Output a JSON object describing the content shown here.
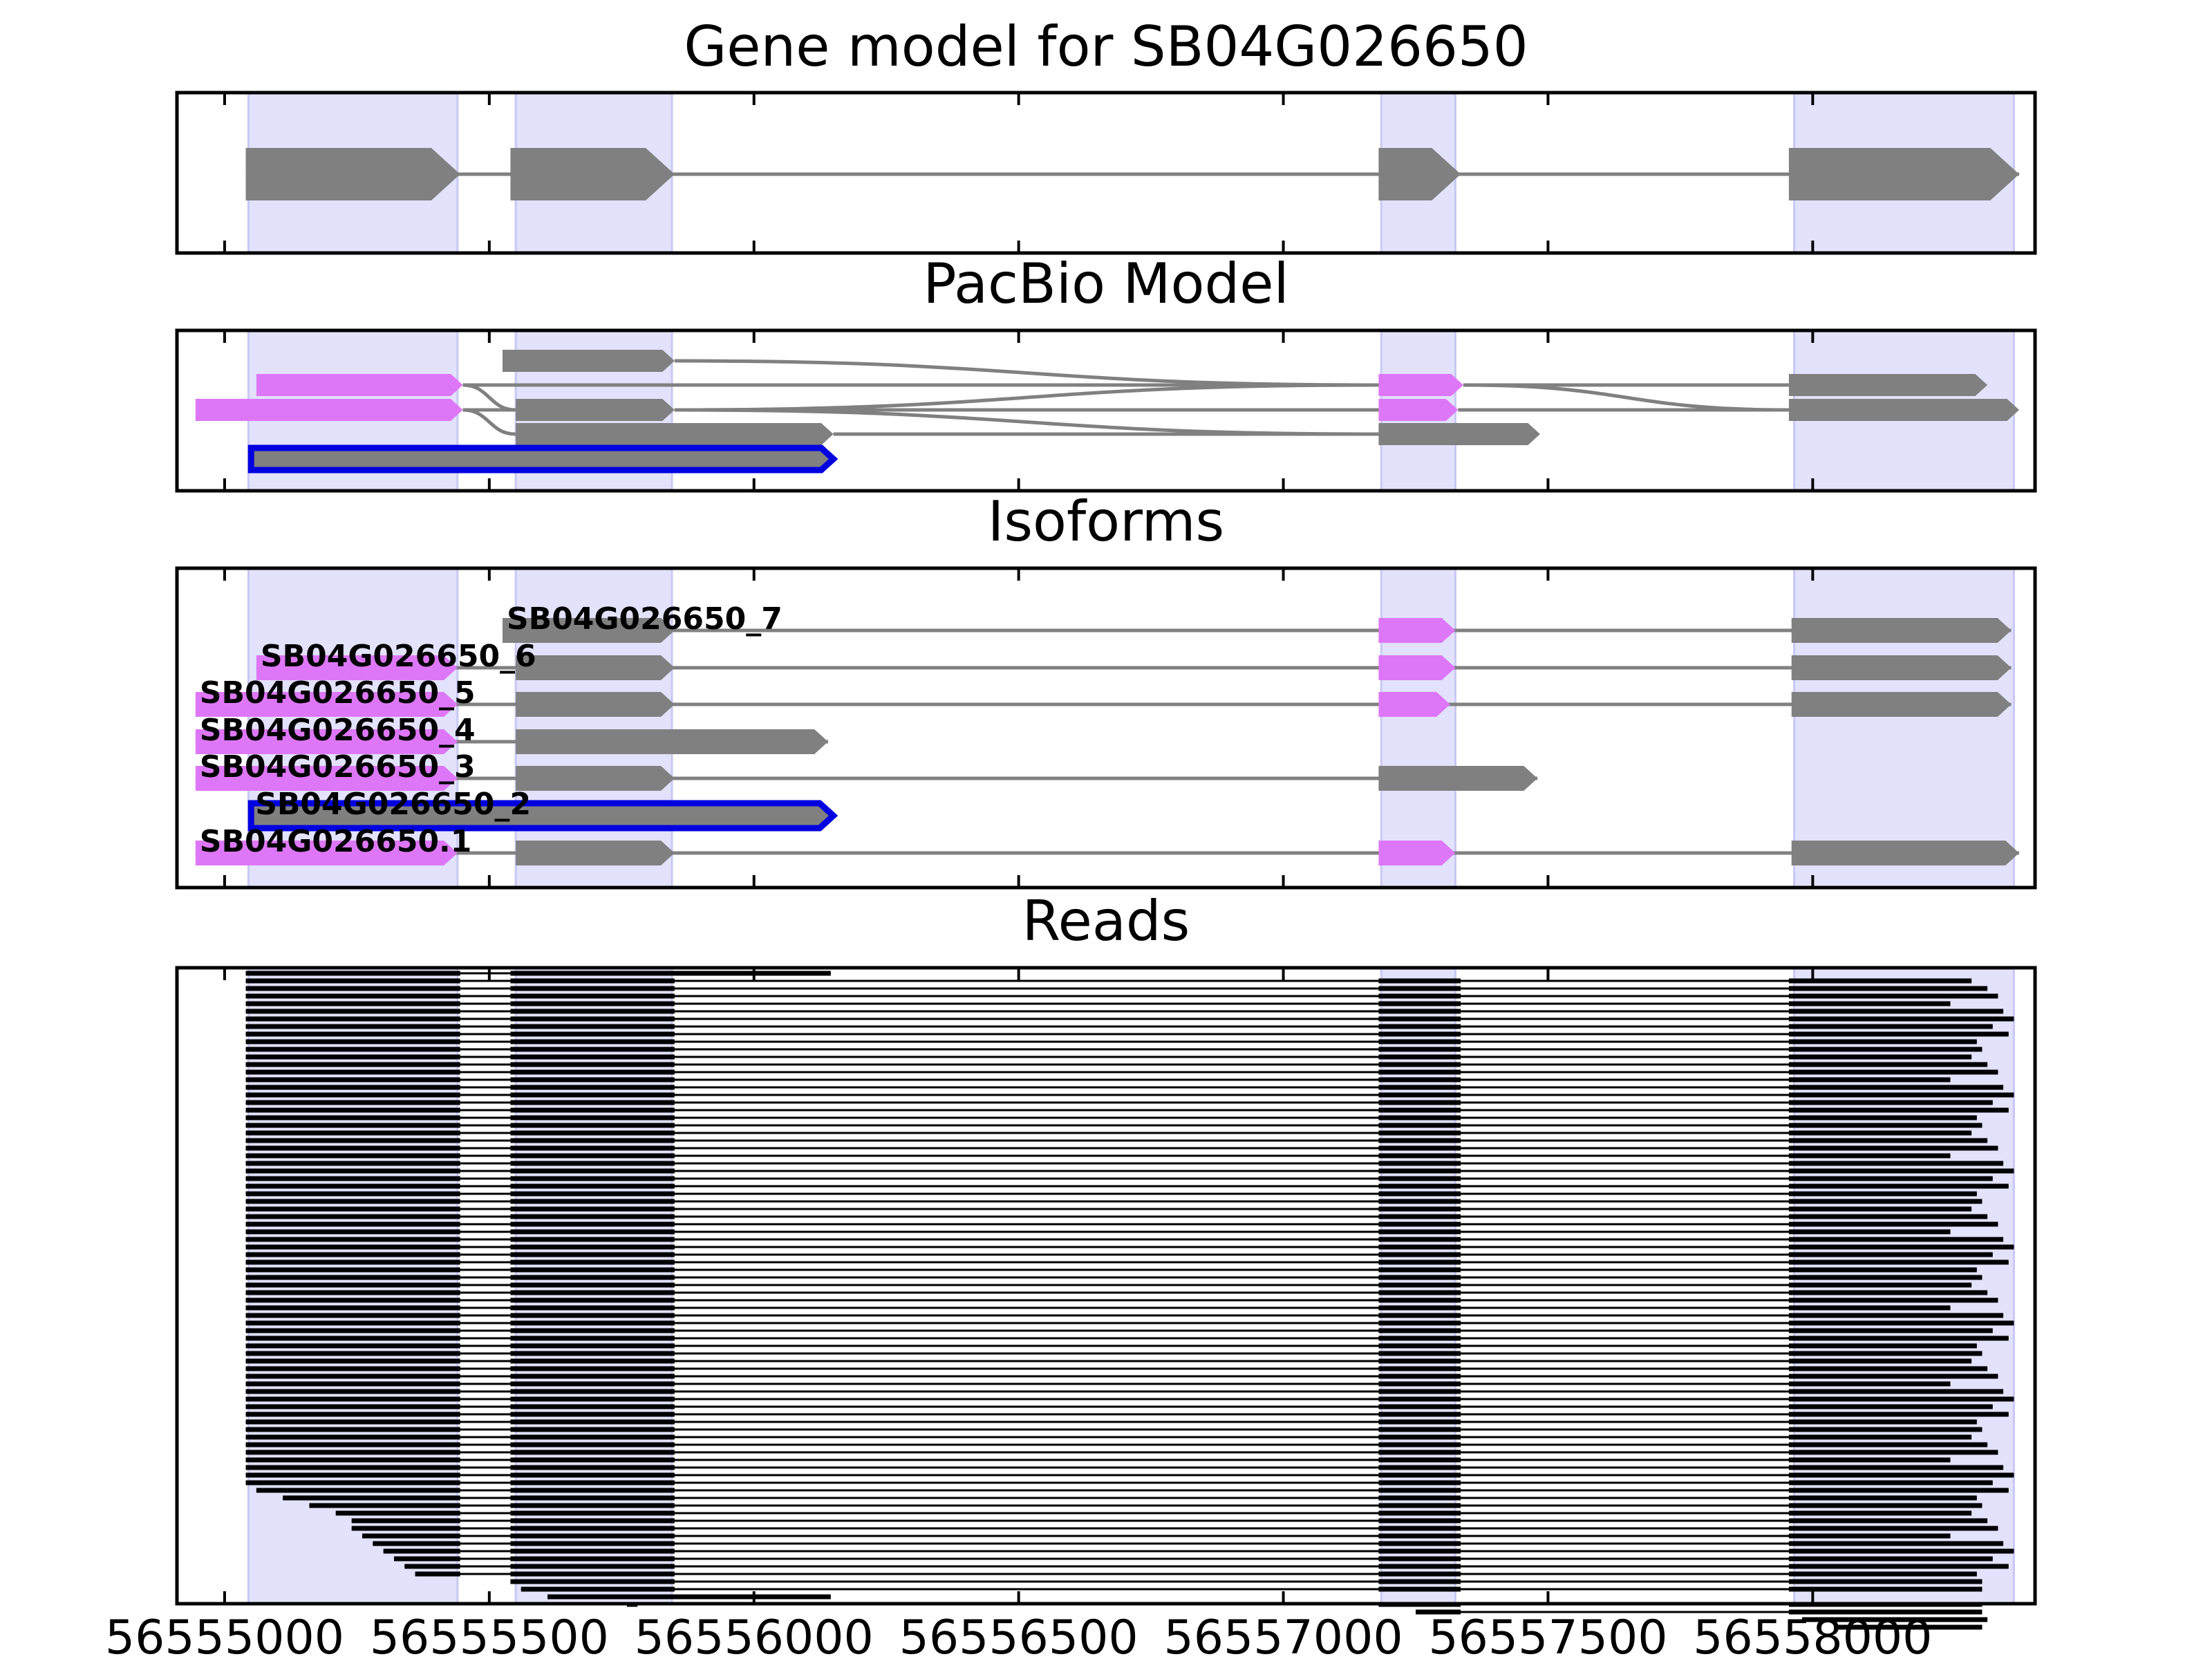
{
  "chart_data": {
    "type": "gene-structure",
    "x_range": [
      56554910,
      56558420
    ],
    "x_ticks": [
      "56555000",
      "56555500",
      "56556000",
      "56556500",
      "56557000",
      "56557500",
      "56558000"
    ],
    "x_tick_values": [
      56555000,
      56555500,
      56556000,
      56556500,
      56557000,
      56557500,
      56558000
    ],
    "exon_shading": [
      [
        56555045,
        56555440
      ],
      [
        56555550,
        56555845
      ],
      [
        56557185,
        56557325
      ],
      [
        56557965,
        56558380
      ]
    ],
    "colors": {
      "shade": "#e2e2fc",
      "exon": "#808080",
      "pacbio_highlight": "#dd77f7",
      "selected": "#0000e0",
      "read": "#000000",
      "intron": "#808080"
    },
    "panels": [
      {
        "title": "Gene model for SB04G026650",
        "transcripts": [
          {
            "exons": [
              [
                56555040,
                56555445
              ],
              [
                56555540,
                56555850
              ],
              [
                56557180,
                56557335
              ],
              [
                56557955,
                56558390
              ]
            ],
            "colors": [
              "#808080",
              "#808080",
              "#808080",
              "#808080"
            ]
          }
        ]
      },
      {
        "title": "PacBio Model",
        "transcripts": [
          {
            "lane": 0,
            "exons": [
              [
                56555525,
                56555850
              ]
            ],
            "colors": [
              "#808080"
            ],
            "link_to": [
              56557180,
              1
            ],
            "selected": false
          },
          {
            "lane": 1,
            "exons": [
              [
                56555060,
                56555450
              ],
              [
                56557180,
                56557340
              ],
              [
                56557955,
                56558330
              ]
            ],
            "colors": [
              "#dd77f7",
              "#dd77f7",
              "#808080"
            ],
            "selected": false
          },
          {
            "lane": 2,
            "exons": [
              [
                56554945,
                56555450
              ],
              [
                56555550,
                56555850
              ],
              [
                56557180,
                56557330
              ],
              [
                56557955,
                56558390
              ]
            ],
            "colors": [
              "#dd77f7",
              "#808080",
              "#dd77f7",
              "#808080"
            ],
            "selected": false
          },
          {
            "lane": 3,
            "exons": [
              [
                56555550,
                56556150
              ],
              [
                56557180,
                56557485
              ]
            ],
            "colors": [
              "#808080",
              "#808080"
            ],
            "selected": false
          },
          {
            "lane": 4,
            "exons": [
              [
                56555050,
                56556150
              ]
            ],
            "colors": [
              "#808080"
            ],
            "selected": true
          }
        ]
      },
      {
        "title": "Isoforms",
        "transcripts": [
          {
            "label": "SB04G026650_7",
            "exons": [
              [
                56555525,
                56555850
              ],
              [
                56557180,
                56557325
              ],
              [
                56557960,
                56558375
              ]
            ],
            "colors": [
              "#808080",
              "#dd77f7",
              "#808080"
            ],
            "selected": false
          },
          {
            "label": "SB04G026650_6",
            "exons": [
              [
                56555060,
                56555440
              ],
              [
                56555550,
                56555850
              ],
              [
                56557180,
                56557325
              ],
              [
                56557960,
                56558375
              ]
            ],
            "colors": [
              "#dd77f7",
              "#808080",
              "#dd77f7",
              "#808080"
            ],
            "selected": false
          },
          {
            "label": "SB04G026650_5",
            "exons": [
              [
                56554945,
                56555440
              ],
              [
                56555550,
                56555850
              ],
              [
                56557180,
                56557315
              ],
              [
                56557960,
                56558375
              ]
            ],
            "colors": [
              "#dd77f7",
              "#808080",
              "#dd77f7",
              "#808080"
            ],
            "selected": false
          },
          {
            "label": "SB04G026650_4",
            "exons": [
              [
                56554945,
                56555440
              ],
              [
                56555550,
                56556140
              ]
            ],
            "colors": [
              "#dd77f7",
              "#808080"
            ],
            "selected": false
          },
          {
            "label": "SB04G026650_3",
            "exons": [
              [
                56554945,
                56555440
              ],
              [
                56555550,
                56555850
              ],
              [
                56557180,
                56557480
              ]
            ],
            "colors": [
              "#dd77f7",
              "#808080",
              "#808080"
            ],
            "selected": false
          },
          {
            "label": "SB04G026650_2",
            "exons": [
              [
                56555050,
                56556150
              ]
            ],
            "colors": [
              "#808080"
            ],
            "selected": true
          },
          {
            "label": "SB04G026650.1",
            "exons": [
              [
                56554945,
                56555440
              ],
              [
                56555550,
                56555850
              ],
              [
                56557180,
                56557325
              ],
              [
                56557960,
                56558390
              ]
            ],
            "colors": [
              "#dd77f7",
              "#808080",
              "#dd77f7",
              "#808080"
            ],
            "selected": false
          }
        ]
      },
      {
        "title": "Reads",
        "read_count": 84,
        "typical_read": [
          [
            56555040,
            56555445
          ],
          [
            56555540,
            56555850
          ],
          [
            56557180,
            56557335
          ],
          [
            56557955,
            56558320
          ]
        ],
        "first_exon_starts_late_rows": [
          [
            68,
            56555060
          ],
          [
            69,
            56555110
          ],
          [
            70,
            56555160
          ],
          [
            71,
            56555210
          ],
          [
            72,
            56555240
          ],
          [
            73,
            56555240
          ],
          [
            74,
            56555260
          ],
          [
            75,
            56555280
          ],
          [
            76,
            56555300
          ],
          [
            77,
            56555320
          ],
          [
            78,
            56555340
          ],
          [
            79,
            56555360
          ]
        ],
        "short_reads": [
          {
            "row": 0,
            "exons": [
              [
                56555040,
                56555445
              ],
              [
                56555540,
                56556145
              ]
            ]
          },
          {
            "row": 80,
            "exons": [
              [
                56555540,
                56555850
              ],
              [
                56557180,
                56557335
              ],
              [
                56557955,
                56558320
              ]
            ]
          },
          {
            "row": 81,
            "exons": [
              [
                56555560,
                56555850
              ],
              [
                56557180,
                56557335
              ],
              [
                56557955,
                56558320
              ]
            ]
          },
          {
            "row": 82,
            "exons": [
              [
                56555610,
                56556145
              ]
            ]
          },
          {
            "row": 83,
            "exons": [
              [
                56555760,
                56555780
              ],
              [
                56557180,
                56557335
              ],
              [
                56557955,
                56558320
              ]
            ]
          },
          {
            "row": 84,
            "exons": [
              [
                56557250,
                56557335
              ],
              [
                56557955,
                56558320
              ]
            ]
          },
          {
            "row": 85,
            "exons": [
              [
                56557980,
                56558330
              ]
            ]
          },
          {
            "row": 86,
            "exons": [
              [
                56558040,
                56558320
              ]
            ]
          }
        ]
      }
    ]
  }
}
